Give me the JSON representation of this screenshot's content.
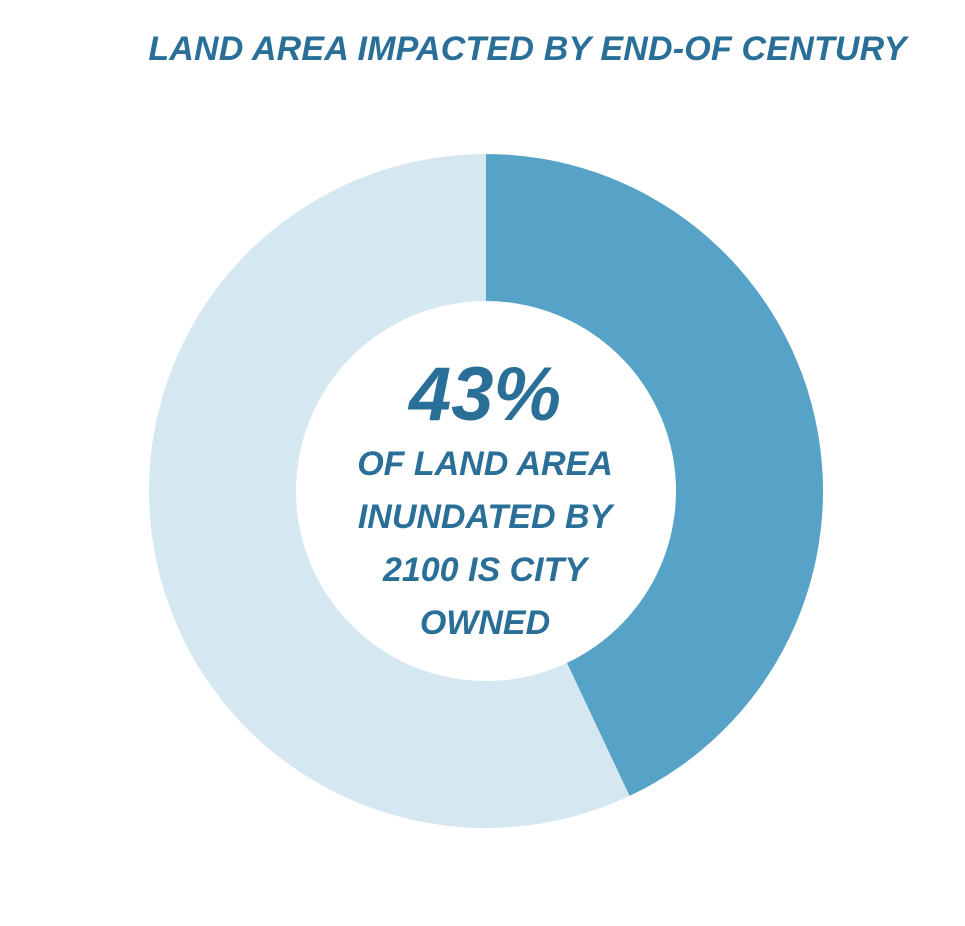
{
  "colors": {
    "title": "#2a6f97",
    "text": "#2a6f97",
    "owned": "#57a3c8",
    "other": "#d5e8f2"
  },
  "chart_data": {
    "type": "pie",
    "style": "donut",
    "title": "LAND AREA IMPACTED BY END-OF CENTURY",
    "slices": [
      {
        "value": 43,
        "color": "#57a3c8"
      },
      {
        "value": 57,
        "color": "#d5e8f2"
      }
    ],
    "center": {
      "value": "43%",
      "lines": [
        "OF LAND AREA",
        "INUNDATED BY",
        "2100 IS CITY",
        "OWNED"
      ]
    }
  }
}
